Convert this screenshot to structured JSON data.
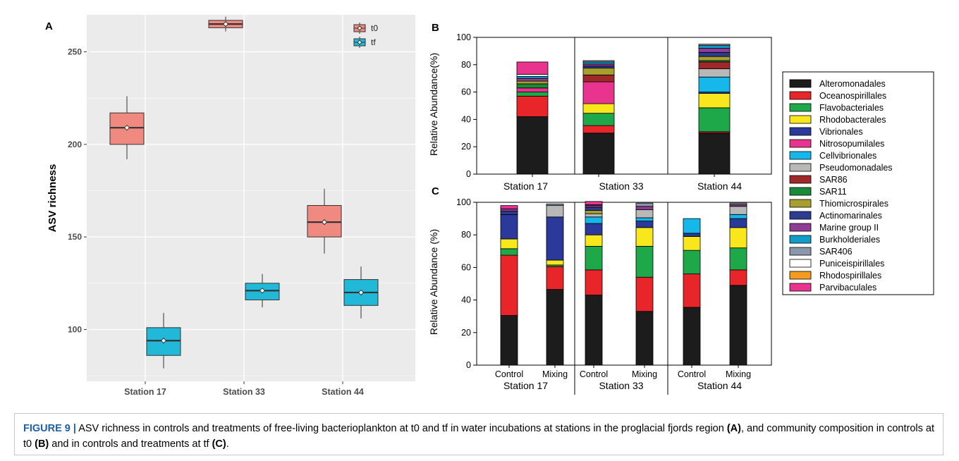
{
  "chart_data": [
    {
      "panel_label": "A",
      "type": "box",
      "ylabel": "ASV richness",
      "categories": [
        "Station 17",
        "Station 33",
        "Station 44"
      ],
      "yticks": [
        100,
        150,
        200,
        250
      ],
      "ylim": [
        72,
        270
      ],
      "grid": true,
      "legend": {
        "placement": "top-right",
        "entries": [
          "t0",
          "tf"
        ]
      },
      "colors": {
        "t0": "#f08a80",
        "tf": "#22b8d8",
        "panel_bg": "#ebebeb",
        "grid": "#ffffff"
      },
      "series": [
        {
          "name": "t0",
          "boxes": [
            {
              "min": 192,
              "q1": 200,
              "median": 209,
              "q3": 217,
              "max": 226,
              "mean": 209
            },
            {
              "min": 261,
              "q1": 263,
              "median": 265,
              "q3": 267,
              "max": 269,
              "mean": 265
            },
            {
              "min": 141,
              "q1": 150,
              "median": 158,
              "q3": 167,
              "max": 176,
              "mean": 158
            }
          ]
        },
        {
          "name": "tf",
          "boxes": [
            {
              "min": 79,
              "q1": 86,
              "median": 94,
              "q3": 101,
              "max": 109,
              "mean": 94
            },
            {
              "min": 112,
              "q1": 116,
              "median": 121,
              "q3": 125,
              "max": 130,
              "mean": 121
            },
            {
              "min": 106,
              "q1": 113,
              "median": 120,
              "q3": 127,
              "max": 134,
              "mean": 120
            }
          ]
        }
      ]
    },
    {
      "panel_label": "B",
      "type": "stacked-bar",
      "ylabel": "Relative Abundance(%)",
      "ylim": [
        0,
        100
      ],
      "yticks": [
        0,
        20,
        40,
        60,
        80,
        100
      ],
      "groups": [
        "Station 17",
        "Station 33",
        "Station 44"
      ],
      "bars": [
        {
          "group": "Station 17",
          "values": [
            42,
            15,
            3,
            0,
            0,
            3,
            0,
            0,
            0,
            3,
            2,
            0,
            2,
            1.5,
            0,
            1.5,
            0,
            0,
            9
          ]
        },
        {
          "group": "Station 33",
          "values": [
            30,
            5.5,
            9,
            7,
            0,
            16,
            0,
            0,
            5,
            0,
            5,
            1.5,
            1.5,
            1.5,
            1,
            0,
            0,
            0,
            0
          ]
        },
        {
          "group": "Station 44",
          "values": [
            30,
            1,
            17.5,
            10.5,
            1,
            0,
            11,
            6,
            5,
            1,
            3,
            3,
            3,
            2,
            1,
            0,
            0,
            0,
            0
          ]
        }
      ]
    },
    {
      "panel_label": "C",
      "type": "stacked-bar",
      "ylabel": "Relative Abundance (%)",
      "ylim": [
        0,
        100
      ],
      "yticks": [
        0,
        20,
        40,
        60,
        80,
        100
      ],
      "groups": [
        "Station 17",
        "Station 33",
        "Station 44"
      ],
      "bars": [
        {
          "group": "Station 17",
          "category": "Control",
          "values": [
            30.5,
            37,
            4,
            6,
            15,
            0,
            0,
            0,
            0,
            0,
            0,
            2,
            1.5,
            0,
            0,
            0,
            0,
            0,
            2
          ]
        },
        {
          "group": "Station 17",
          "category": "Mixing",
          "values": [
            46.5,
            14,
            1,
            3,
            26.5,
            0,
            0,
            7,
            0,
            0,
            0,
            0,
            0,
            0,
            1,
            0,
            0,
            0,
            0
          ]
        },
        {
          "group": "Station 33",
          "category": "Control",
          "values": [
            43,
            15.5,
            14.5,
            7,
            7,
            0,
            4,
            2,
            0,
            0,
            2,
            2,
            1,
            0,
            0.5,
            0,
            0,
            0,
            2
          ]
        },
        {
          "group": "Station 33",
          "category": "Mixing",
          "values": [
            33,
            21,
            19,
            11.5,
            4,
            0,
            2,
            5,
            0,
            0,
            0,
            0,
            2,
            0,
            2,
            0,
            0,
            0,
            0
          ]
        },
        {
          "group": "Station 44",
          "category": "Control",
          "values": [
            35.5,
            20.5,
            14.5,
            8.5,
            2,
            0,
            9,
            0,
            0,
            0,
            0,
            0,
            0,
            0,
            0,
            0,
            0,
            0,
            0
          ]
        },
        {
          "group": "Station 44",
          "category": "Mixing",
          "values": [
            49,
            9.5,
            13.5,
            12.5,
            5.5,
            0,
            2.5,
            5,
            0,
            0,
            0,
            0,
            1,
            0,
            1,
            0,
            0,
            0,
            0
          ]
        }
      ]
    }
  ],
  "legend_orders": [
    {
      "name": "Alteromonadales",
      "color": "#1c1c1c"
    },
    {
      "name": "Oceanospirillales",
      "color": "#e8262a"
    },
    {
      "name": "Flavobacteriales",
      "color": "#1ea84a"
    },
    {
      "name": "Rhodobacterales",
      "color": "#f8e71c"
    },
    {
      "name": "Vibrionales",
      "color": "#2b3a9a"
    },
    {
      "name": "Nitrosopumilales",
      "color": "#e8348f"
    },
    {
      "name": "Cellvibrionales",
      "color": "#16b8ec"
    },
    {
      "name": "Pseudomonadales",
      "color": "#b8b8b8"
    },
    {
      "name": "SAR86",
      "color": "#a0282a"
    },
    {
      "name": "SAR11",
      "color": "#1a8a3a"
    },
    {
      "name": "Thiomicrospirales",
      "color": "#a7a02e"
    },
    {
      "name": "Actinomarinales",
      "color": "#2c3d8f"
    },
    {
      "name": "Marine group II",
      "color": "#8e3d96"
    },
    {
      "name": "Burkholderiales",
      "color": "#109dc9"
    },
    {
      "name": "SAR406",
      "color": "#8c97ab"
    },
    {
      "name": "Puniceispirillales",
      "color": "#ffffff"
    },
    {
      "name": "Rhodospirillales",
      "color": "#f39b1f"
    },
    {
      "name": "Parvibaculales",
      "color": "#e8348f"
    }
  ],
  "caption": {
    "figure_label": "FIGURE 9 |",
    "text_1": " ASV richness in controls and treatments of free-living bacterioplankton at t0 and tf in water incubations at stations in the proglacial fjords region ",
    "ref_a": "(A)",
    "text_2": ", and community composition in controls at t0 ",
    "ref_b": "(B)",
    "text_3": " and in controls and treatments at tf ",
    "ref_c": "(C)",
    "text_4": "."
  }
}
